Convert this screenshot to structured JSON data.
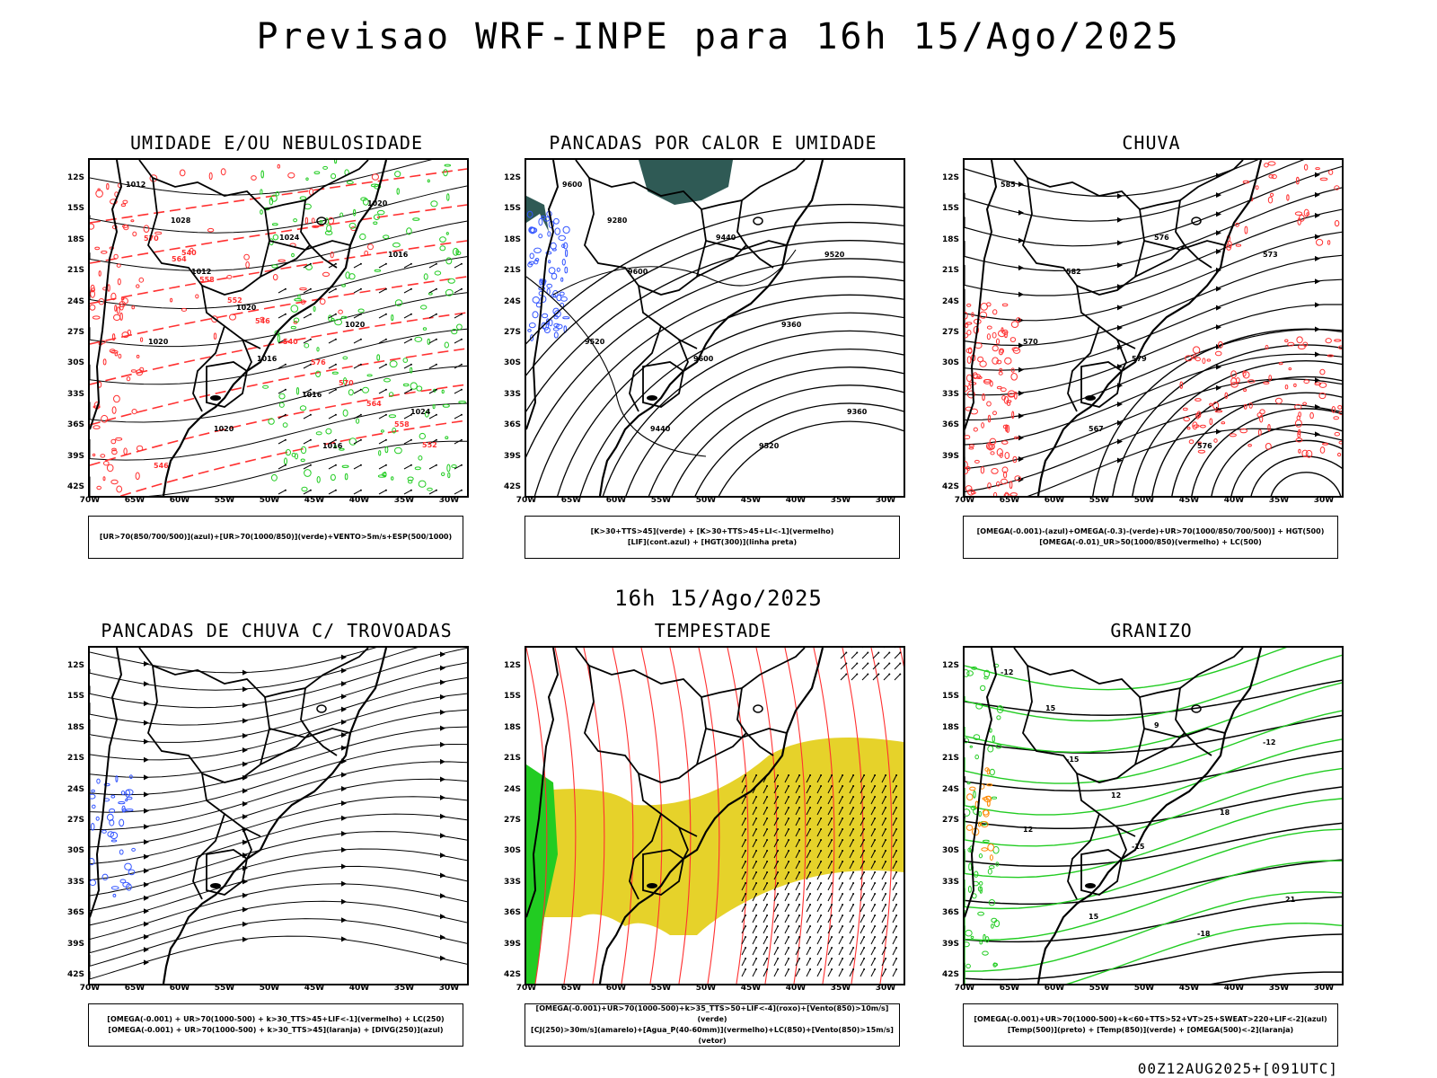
{
  "title": "Previsao WRF-INPE  para 16h 15/Ago/2025",
  "mid_title": "16h 15/Ago/2025",
  "footer": "00Z12AUG2025+[091UTC]",
  "axes": {
    "lat": [
      "12S",
      "15S",
      "18S",
      "21S",
      "24S",
      "27S",
      "30S",
      "33S",
      "36S",
      "39S",
      "42S"
    ],
    "lon": [
      "70W",
      "65W",
      "60W",
      "55W",
      "50W",
      "45W",
      "40W",
      "35W",
      "30W"
    ]
  },
  "panels": [
    {
      "id": "umidade",
      "title": "UMIDADE E/OU NEBULOSIDADE",
      "legend": [
        "[UR>70(850/700/500)](azul)+[UR>70(1000/850)](verde)+VENTO>5m/s+ESP(500/1000)"
      ],
      "contour_labels": [
        "1012",
        "1012",
        "1016",
        "1016",
        "1016",
        "1020",
        "1020",
        "1024",
        "1020",
        "1024",
        "1028",
        "1020",
        "1016",
        "1020",
        "570",
        "564",
        "558",
        "552",
        "546",
        "540",
        "576",
        "570",
        "564",
        "558",
        "552",
        "546",
        "540"
      ]
    },
    {
      "id": "pancadas",
      "title": "PANCADAS POR CALOR E UMIDADE",
      "legend": [
        "[K>30+TTS>45](verde) + [K>30+TTS>45+LI<-1](vermelho)",
        "[LIF](cont.azul) + [HGT(300)](linha preta)"
      ],
      "contour_labels": [
        "9600",
        "9600",
        "9600",
        "9520",
        "9520",
        "9520",
        "9440",
        "9440",
        "9360",
        "9360",
        "9280"
      ]
    },
    {
      "id": "chuva",
      "title": "CHUVA",
      "legend": [
        "[OMEGA(-0.001)-(azul)+OMEGA(-0.3)-(verde)+UR>70(1000/850/700/500)] + HGT(500)",
        "[OMEGA(-0.01)_UR>50(1000/850)(vermelho) + LC(500)"
      ],
      "contour_labels": [
        "585",
        "582",
        "579",
        "576",
        "573",
        "570",
        "567",
        "576"
      ]
    },
    {
      "id": "trovoadas",
      "title": "PANCADAS DE CHUVA C/ TROVOADAS",
      "legend": [
        "[OMEGA(-0.001) + UR>70(1000-500) + k>30_TTS>45+LIF<-1](vermelho) + LC(250)",
        "[OMEGA(-0.001) + UR>70(1000-500) + k>30_TTS>45](laranja) + [DIVG(250)](azul)"
      ],
      "contour_labels": []
    },
    {
      "id": "tempestade",
      "title": "TEMPESTADE",
      "legend": [
        "[OMEGA(-0.001)+UR>70(1000-500)+k>35_TTS>50+LIF<-4](roxo)+[Vento(850)>10m/s](verde)",
        "[CJ(250)>30m/s](amarelo)+[Agua_P(40-60mm)](vermelho)+LC(850)+[Vento(850)>15m/s](vetor)"
      ],
      "contour_labels": []
    },
    {
      "id": "granizo",
      "title": "GRANIZO",
      "legend": [
        "[OMEGA(-0.001)+UR>70(1000-500)+k<60+TTS>52+VT>25+SWEAT>220+LIF<-2](azul)",
        "[Temp(500)](preto) + [Temp(850)](verde) + [OMEGA(500)<-2](laranja)"
      ],
      "contour_labels": [
        "-12",
        "-15",
        "-15",
        "-18",
        "-12",
        "12",
        "15",
        "9",
        "18",
        "21",
        "15",
        "12"
      ]
    }
  ],
  "colors": {
    "black": "#000000",
    "red": "#ff3030",
    "green": "#22cc22",
    "blue": "#3355ff",
    "teal": "#2f5a55",
    "yellow": "#e6d22a",
    "orange": "#ff8800"
  }
}
